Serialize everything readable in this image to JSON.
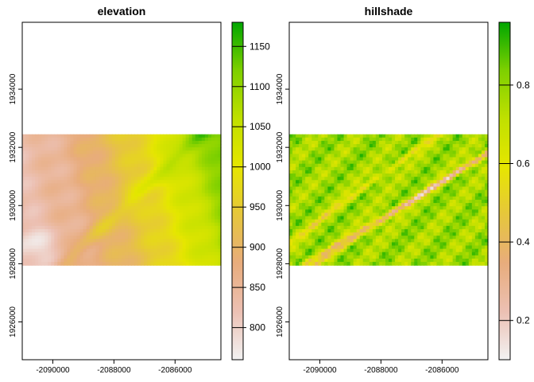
{
  "chart_data": [
    {
      "type": "heatmap",
      "title": "elevation",
      "xlabel": "",
      "ylabel": "",
      "xlim": [
        -2091000,
        -2084500
      ],
      "ylim": [
        1924700,
        1936300
      ],
      "raster_extent": {
        "x": [
          -2091000,
          -2084500
        ],
        "y": [
          1927950,
          1932450
        ]
      },
      "x_ticks": [
        -2090000,
        -2088000,
        -2086000
      ],
      "x_tick_labels": [
        "-2090000",
        "-2088000",
        "-2086000"
      ],
      "y_ticks": [
        1926000,
        1928000,
        1930000,
        1932000,
        1934000
      ],
      "y_tick_labels": [
        "1926000",
        "1928000",
        "1930000",
        "1932000",
        "1934000"
      ],
      "legend": {
        "placement": "right",
        "range": [
          760,
          1180
        ],
        "ticks": [
          800,
          850,
          900,
          950,
          1000,
          1050,
          1100,
          1150
        ],
        "tick_labels": [
          "800",
          "850",
          "900",
          "950",
          "1000",
          "1050",
          "1100",
          "1150"
        ],
        "colors": [
          "#f2f2f2",
          "#ecc0b3",
          "#e8ac7c",
          "#e6c63c",
          "#e6e600",
          "#c0e000",
          "#7ed000",
          "#00a600"
        ]
      }
    },
    {
      "type": "heatmap",
      "title": "hillshade",
      "xlabel": "",
      "ylabel": "",
      "xlim": [
        -2091000,
        -2084500
      ],
      "ylim": [
        1924700,
        1936300
      ],
      "raster_extent": {
        "x": [
          -2091000,
          -2084500
        ],
        "y": [
          1927950,
          1932450
        ]
      },
      "x_ticks": [
        -2090000,
        -2088000,
        -2086000
      ],
      "x_tick_labels": [
        "-2090000",
        "-2088000",
        "-2086000"
      ],
      "y_ticks": [
        1926000,
        1928000,
        1930000,
        1932000,
        1934000
      ],
      "y_tick_labels": [
        "1926000",
        "1928000",
        "1930000",
        "1932000",
        "1934000"
      ],
      "legend": {
        "placement": "right",
        "range": [
          0.1,
          0.96
        ],
        "ticks": [
          0.2,
          0.4,
          0.6,
          0.8
        ],
        "tick_labels": [
          "0.2",
          "0.4",
          "0.6",
          "0.8"
        ],
        "colors": [
          "#f2f2f2",
          "#ecc0b3",
          "#e8ac7c",
          "#e6c63c",
          "#e6e600",
          "#c0e000",
          "#7ed000",
          "#00a600"
        ]
      }
    }
  ]
}
